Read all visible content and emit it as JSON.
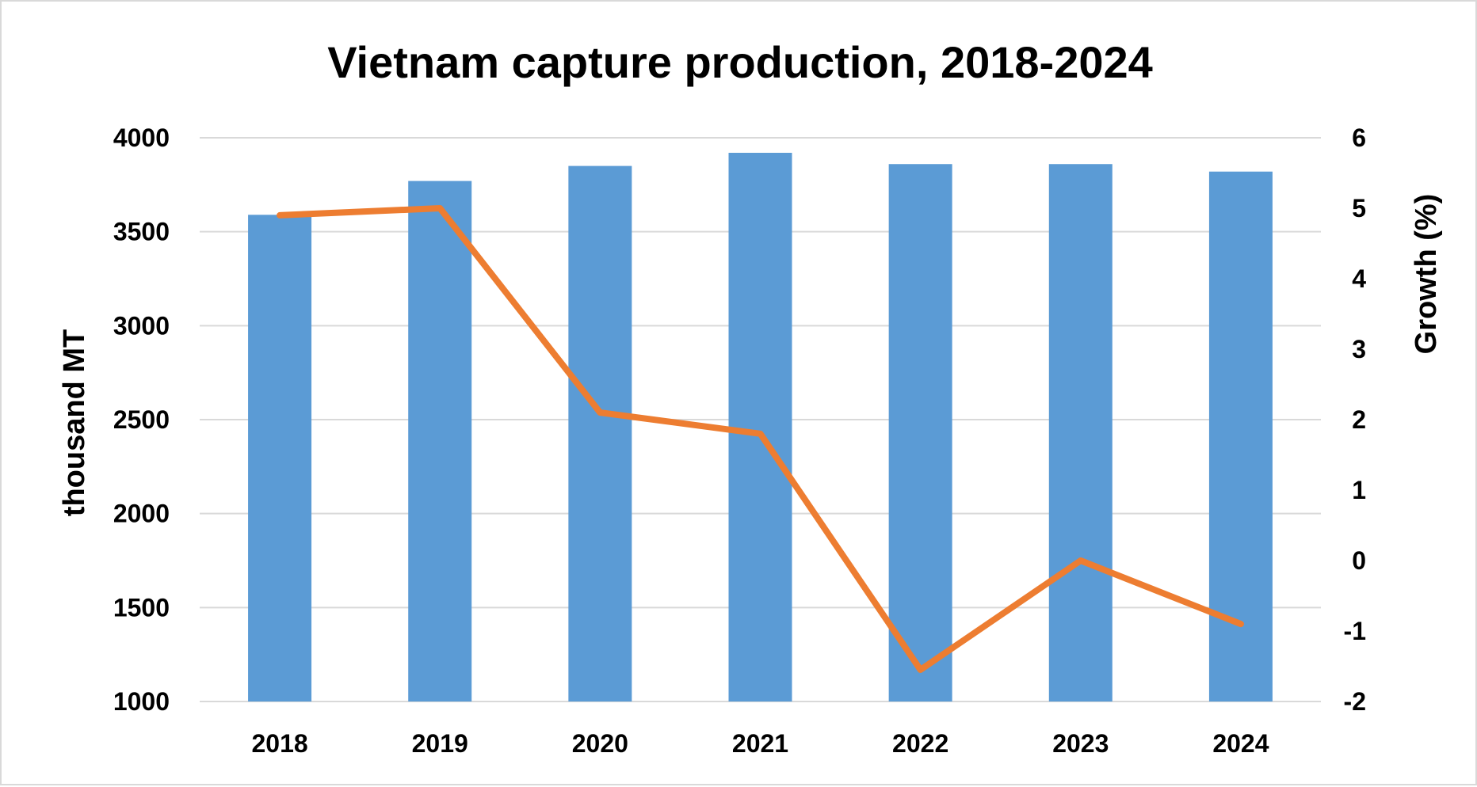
{
  "chart_data": {
    "type": "bar",
    "title": "Vietnam capture production, 2018-2024",
    "categories": [
      "2018",
      "2019",
      "2020",
      "2021",
      "2022",
      "2023",
      "2024"
    ],
    "ylabel": "thousand MT",
    "y2label": "Growth (%)",
    "ylim": [
      1000,
      4000
    ],
    "y2lim": [
      -2,
      6
    ],
    "yticks": [
      "4000",
      "3500",
      "3000",
      "2500",
      "2000",
      "1500",
      "1000"
    ],
    "y2ticks": [
      "6",
      "5",
      "4",
      "3",
      "2",
      "1",
      "0",
      "-1",
      "-2"
    ],
    "grid": true,
    "legend": "none",
    "series": [
      {
        "type": "bar",
        "axis": "left",
        "color": "#5b9bd5",
        "values": [
          3590,
          3770,
          3850,
          3920,
          3860,
          3860,
          3820
        ]
      },
      {
        "type": "line",
        "axis": "right",
        "color": "#ed7d31",
        "values": [
          4.9,
          5.0,
          2.1,
          1.8,
          -1.55,
          0.0,
          -0.9
        ]
      }
    ]
  }
}
